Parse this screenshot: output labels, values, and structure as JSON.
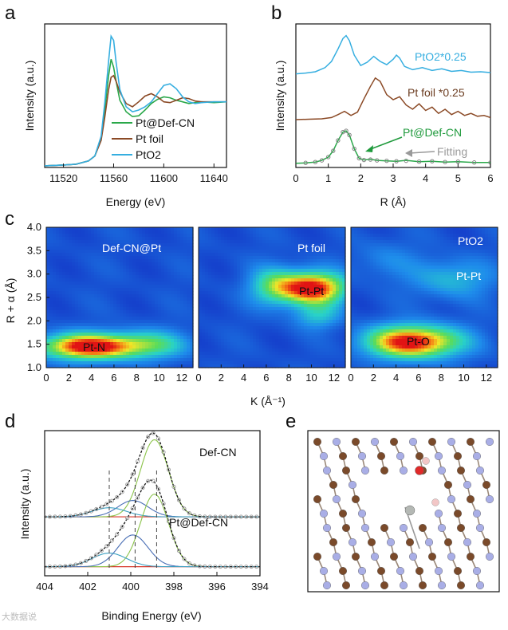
{
  "panel_labels": {
    "a": "a",
    "b": "b",
    "c": "c",
    "d": "d",
    "e": "e"
  },
  "chart_data": [
    {
      "id": "a",
      "type": "line",
      "xlabel": "Energy (eV)",
      "ylabel": "Intensity (a.u.)",
      "xlim": [
        11505,
        11650
      ],
      "xticks": [
        11520,
        11560,
        11600,
        11640
      ],
      "legend": [
        "Pt@Def-CN",
        "Pt foil",
        "PtO2"
      ],
      "series": [
        {
          "name": "Pt@Def-CN",
          "color": "#2aa84a",
          "x": [
            11505,
            11520,
            11530,
            11540,
            11545,
            11550,
            11553,
            11556,
            11558,
            11560,
            11562,
            11565,
            11570,
            11575,
            11580,
            11585,
            11590,
            11595,
            11600,
            11605,
            11610,
            11615,
            11620,
            11625,
            11630,
            11640,
            11650
          ],
          "y": [
            0.02,
            0.03,
            0.04,
            0.08,
            0.14,
            0.35,
            0.7,
            1.12,
            1.32,
            1.22,
            1.05,
            0.82,
            0.68,
            0.62,
            0.63,
            0.7,
            0.78,
            0.83,
            0.86,
            0.85,
            0.82,
            0.8,
            0.78,
            0.79,
            0.8,
            0.79,
            0.8
          ]
        },
        {
          "name": "Pt foil",
          "color": "#8b4a26",
          "x": [
            11505,
            11520,
            11530,
            11540,
            11545,
            11550,
            11553,
            11556,
            11558,
            11560,
            11562,
            11565,
            11570,
            11575,
            11580,
            11585,
            11590,
            11595,
            11600,
            11605,
            11610,
            11615,
            11620,
            11625,
            11630,
            11640,
            11650
          ],
          "y": [
            0.02,
            0.03,
            0.04,
            0.08,
            0.14,
            0.33,
            0.62,
            0.95,
            1.1,
            1.12,
            1.05,
            0.92,
            0.78,
            0.74,
            0.8,
            0.87,
            0.9,
            0.86,
            0.8,
            0.79,
            0.82,
            0.85,
            0.84,
            0.81,
            0.8,
            0.8,
            0.8
          ]
        },
        {
          "name": "PtO2",
          "color": "#35aee0",
          "x": [
            11505,
            11520,
            11530,
            11540,
            11545,
            11550,
            11553,
            11556,
            11558,
            11560,
            11562,
            11565,
            11570,
            11575,
            11580,
            11585,
            11590,
            11595,
            11600,
            11605,
            11610,
            11615,
            11620,
            11625,
            11630,
            11640,
            11650
          ],
          "y": [
            0.02,
            0.03,
            0.04,
            0.08,
            0.14,
            0.38,
            0.8,
            1.3,
            1.6,
            1.55,
            1.28,
            0.95,
            0.74,
            0.68,
            0.7,
            0.74,
            0.8,
            0.9,
            1.0,
            1.02,
            0.96,
            0.86,
            0.8,
            0.78,
            0.79,
            0.8,
            0.8
          ]
        }
      ]
    },
    {
      "id": "b",
      "type": "line",
      "xlabel": "R (Å)",
      "ylabel": "Intensity (a.u.)",
      "xlim": [
        0,
        6
      ],
      "xticks": [
        0,
        1,
        2,
        3,
        4,
        5,
        6
      ],
      "annotations": [
        "PtO2*0.25",
        "Pt foil *0.25",
        "Pt@Def-CN",
        "Fitting"
      ],
      "series": [
        {
          "name": "PtO2*0.25",
          "color": "#35aee0",
          "offset": 2.15,
          "x": [
            0,
            0.3,
            0.6,
            0.9,
            1.1,
            1.3,
            1.45,
            1.55,
            1.65,
            1.8,
            2.0,
            2.2,
            2.4,
            2.6,
            2.8,
            3.0,
            3.1,
            3.2,
            3.35,
            3.6,
            3.9,
            4.2,
            4.5,
            4.8,
            5.1,
            5.4,
            5.7,
            6.0
          ],
          "y": [
            0,
            0.02,
            0.05,
            0.15,
            0.3,
            0.6,
            0.85,
            0.92,
            0.8,
            0.45,
            0.2,
            0.28,
            0.42,
            0.3,
            0.22,
            0.35,
            0.45,
            0.38,
            0.18,
            0.1,
            0.15,
            0.08,
            0.12,
            0.06,
            0.08,
            0.04,
            0.05,
            0.03
          ]
        },
        {
          "name": "Pt foil *0.25",
          "color": "#8b4a26",
          "offset": 1.05,
          "x": [
            0,
            0.4,
            0.8,
            1.1,
            1.3,
            1.5,
            1.7,
            1.9,
            2.1,
            2.3,
            2.45,
            2.6,
            2.8,
            3.0,
            3.2,
            3.4,
            3.6,
            3.8,
            4.0,
            4.2,
            4.4,
            4.6,
            4.8,
            5.0,
            5.2,
            5.4,
            5.6,
            5.8,
            6.0
          ],
          "y": [
            0,
            0.01,
            0.02,
            0.05,
            0.12,
            0.2,
            0.1,
            0.18,
            0.5,
            0.8,
            1.0,
            0.92,
            0.6,
            0.48,
            0.55,
            0.35,
            0.25,
            0.38,
            0.22,
            0.3,
            0.15,
            0.25,
            0.12,
            0.2,
            0.1,
            0.15,
            0.08,
            0.1,
            0.05
          ]
        },
        {
          "name": "Pt@Def-CN",
          "color": "#2aa84a",
          "offset": 0,
          "x": [
            0,
            0.3,
            0.6,
            0.8,
            1.0,
            1.15,
            1.3,
            1.45,
            1.55,
            1.65,
            1.8,
            1.95,
            2.1,
            2.3,
            2.5,
            2.8,
            3.1,
            3.4,
            3.8,
            4.2,
            4.6,
            5.0,
            5.5,
            6.0
          ],
          "y": [
            0,
            0.01,
            0.03,
            0.07,
            0.15,
            0.3,
            0.55,
            0.75,
            0.78,
            0.68,
            0.35,
            0.12,
            0.08,
            0.1,
            0.07,
            0.06,
            0.05,
            0.07,
            0.04,
            0.05,
            0.03,
            0.04,
            0.02,
            0.02
          ]
        },
        {
          "name": "Fitting",
          "color": "#808080",
          "offset": 0,
          "x": [
            0.3,
            0.6,
            0.8,
            1.0,
            1.15,
            1.3,
            1.45,
            1.55,
            1.65,
            1.8,
            1.95,
            2.1,
            2.3,
            2.5,
            2.8,
            3.1,
            3.4,
            3.8,
            4.2,
            4.6,
            5.0,
            5.5,
            6.0
          ],
          "y": [
            0.01,
            0.03,
            0.07,
            0.15,
            0.3,
            0.55,
            0.75,
            0.78,
            0.68,
            0.35,
            0.12,
            0.08,
            0.09,
            0.07,
            0.06,
            0.05,
            0.06,
            0.04,
            0.05,
            0.03,
            0.04,
            0.02,
            0.02
          ]
        }
      ]
    },
    {
      "id": "c",
      "type": "heatmap",
      "xlabel": "K (Å⁻¹)",
      "ylabel": "R + α (Å)",
      "xlim": [
        0,
        13
      ],
      "ylim": [
        1.0,
        4.0
      ],
      "xticks": [
        0,
        2,
        4,
        6,
        8,
        10,
        12
      ],
      "yticks": [
        1.0,
        1.5,
        2.0,
        2.5,
        3.0,
        3.5,
        4.0
      ],
      "maps": [
        {
          "title": "Def-CN@Pt",
          "label": "Pt-N",
          "label_k": 3.5,
          "label_r": 1.45,
          "peaks": [
            {
              "k": 3.8,
              "r": 1.45,
              "sk": 3.2,
              "sr": 0.2,
              "a": 1.0
            },
            {
              "k": 9.5,
              "r": 1.5,
              "sk": 2.5,
              "sr": 0.22,
              "a": 0.35
            }
          ]
        },
        {
          "title": "Pt foil",
          "label": "Pt-Pt",
          "label_k": 10.0,
          "label_r": 2.7,
          "peaks": [
            {
              "k": 10.0,
              "r": 2.7,
              "sk": 2.2,
              "sr": 0.25,
              "a": 1.0
            },
            {
              "k": 6.5,
              "r": 2.75,
              "sk": 1.5,
              "sr": 0.3,
              "a": 0.35
            },
            {
              "k": 10.5,
              "r": 2.1,
              "sk": 1.5,
              "sr": 0.2,
              "a": 0.3
            }
          ]
        },
        {
          "title": "PtO2",
          "label": "Pt-O",
          "label_k": 5.5,
          "label_r": 1.55,
          "sublabel": "Pt-Pt",
          "peaks": [
            {
              "k": 5.5,
              "r": 1.55,
              "sk": 3.0,
              "sr": 0.25,
              "a": 1.0
            },
            {
              "k": 9.0,
              "r": 2.9,
              "sk": 2.5,
              "sr": 0.3,
              "a": 0.3
            },
            {
              "k": 3.0,
              "r": 3.3,
              "sk": 2.0,
              "sr": 0.3,
              "a": 0.15
            }
          ]
        }
      ]
    },
    {
      "id": "d",
      "type": "line",
      "xlabel": "Binding Energy (eV)",
      "ylabel": "Intensity (a.u.)",
      "xlim": [
        404,
        394
      ],
      "xticks": [
        404,
        402,
        400,
        398,
        396,
        394
      ],
      "guides": [
        401.0,
        399.8,
        398.8
      ],
      "spectra": [
        {
          "label": "Def-CN",
          "offset": 0.55,
          "components": [
            {
              "center": 398.9,
              "width": 0.65,
              "height": 0.85,
              "color": "#8bc34a"
            },
            {
              "center": 399.9,
              "width": 0.7,
              "height": 0.18,
              "color": "#4a6fb5"
            },
            {
              "center": 401.0,
              "width": 0.8,
              "height": 0.1,
              "color": "#3a9ec0"
            }
          ]
        },
        {
          "label": "Pt@Def-CN",
          "offset": 0,
          "components": [
            {
              "center": 398.9,
              "width": 0.65,
              "height": 0.8,
              "color": "#8bc34a"
            },
            {
              "center": 399.9,
              "width": 0.7,
              "height": 0.35,
              "color": "#4a6fb5"
            },
            {
              "center": 401.0,
              "width": 0.8,
              "height": 0.15,
              "color": "#3a9ec0"
            }
          ]
        }
      ]
    }
  ],
  "panel_e": {
    "atoms": {
      "C": "#7a4a2a",
      "N": "#a9aee6",
      "Pt": "#b4b8b4",
      "O": "#e02a2a",
      "H": "#f2c6c6"
    }
  },
  "watermark": "大数据说"
}
